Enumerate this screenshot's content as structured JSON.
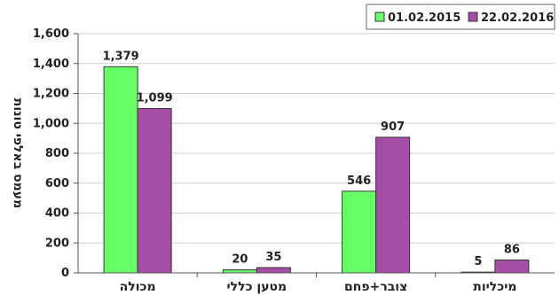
{
  "chart_data": {
    "type": "bar",
    "categories": [
      "מכולה",
      "מטען כללי",
      "צובר+פחם",
      "מיכליות"
    ],
    "series": [
      {
        "name": "01.02.2015",
        "color": "#66ff66",
        "values": [
          1379,
          20,
          546,
          5
        ]
      },
      {
        "name": "22.02.2016",
        "color": "#a64da6",
        "values": [
          1099,
          35,
          907,
          86
        ]
      }
    ],
    "data_labels": [
      [
        "1,379",
        "20",
        "546",
        "5"
      ],
      [
        "1,099",
        "35",
        "907",
        "86"
      ]
    ],
    "yticks": [
      0,
      200,
      400,
      600,
      800,
      1000,
      1200,
      1400,
      1600
    ],
    "ytick_labels": [
      "0",
      "200",
      "400",
      "600",
      "800",
      "1,000",
      "1,200",
      "1,400",
      "1,600"
    ],
    "ylim": [
      0,
      1600
    ],
    "ylabel": "מעמס באלפי טונות",
    "xlabel": "",
    "title": "",
    "grid": true,
    "legend_position": "top-right"
  }
}
